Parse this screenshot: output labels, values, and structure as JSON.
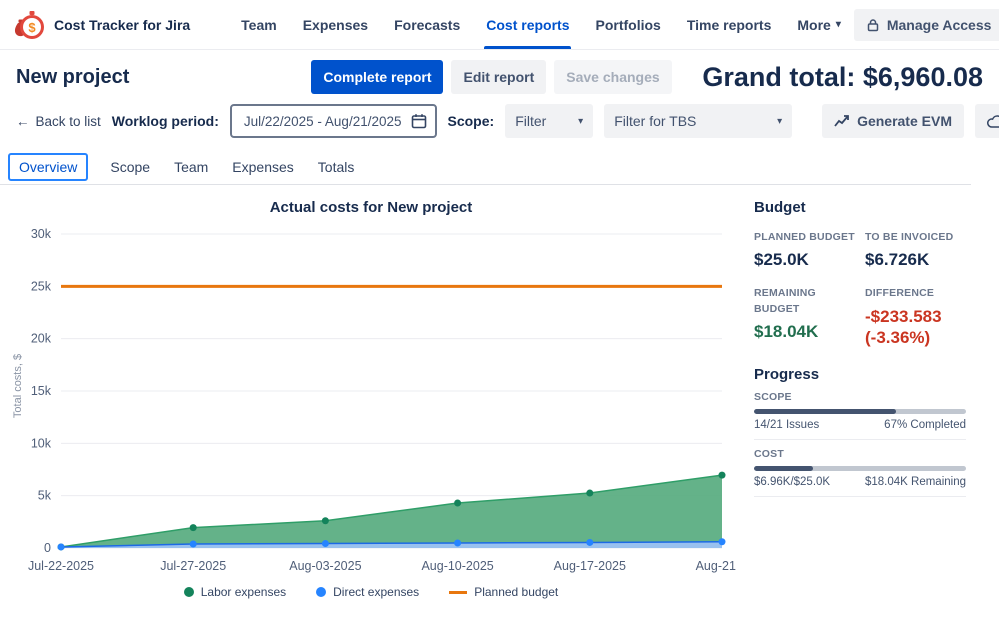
{
  "app": {
    "title": "Cost Tracker for Jira"
  },
  "icons": {
    "chevron_down": "▾",
    "kebab": "⋮",
    "back_arrow": "←"
  },
  "colors": {
    "accent_blue": "#0052cc",
    "labor_green": "#57ab7f",
    "direct_blue": "#2684ff",
    "budget_orange": "#e8770e",
    "positive_green": "#216e4e",
    "negative_red": "#ca3521"
  },
  "nav": {
    "items": [
      {
        "label": "Team",
        "active": false
      },
      {
        "label": "Expenses",
        "active": false
      },
      {
        "label": "Forecasts",
        "active": false
      },
      {
        "label": "Cost reports",
        "active": true
      },
      {
        "label": "Portfolios",
        "active": false
      },
      {
        "label": "Time reports",
        "active": false
      }
    ],
    "more_label": "More",
    "manage_access_label": "Manage Access"
  },
  "header": {
    "project_title": "New project",
    "complete_report_label": "Complete report",
    "edit_report_label": "Edit report",
    "save_changes_label": "Save changes",
    "grand_total": "Grand total: $6,960.08"
  },
  "toolbar": {
    "back_label": "Back to list",
    "worklog_label": "Worklog period:",
    "worklog_value": "Jul/22/2025 - Aug/21/2025",
    "scope_label": "Scope:",
    "scope_filter_value": "Filter",
    "tbs_filter_value": "Filter for TBS",
    "generate_evm_label": "Generate EVM"
  },
  "tabs": [
    "Overview",
    "Scope",
    "Team",
    "Expenses",
    "Totals"
  ],
  "chart_data": {
    "type": "area",
    "title": "Actual costs for New project",
    "ylabel": "Total costs, $",
    "x": [
      "Jul-22-2025",
      "Jul-27-2025",
      "Aug-03-2025",
      "Aug-10-2025",
      "Aug-17-2025",
      "Aug-21…"
    ],
    "ylim": [
      0,
      30000
    ],
    "yticks": [
      "0",
      "5k",
      "10k",
      "15k",
      "20k",
      "25k",
      "30k"
    ],
    "grid": true,
    "legend_position": "bottom",
    "series": [
      {
        "name": "Labor expenses",
        "kind": "area",
        "color": "#2f9e68",
        "fill": "#57ab7f",
        "dot": "#14835b",
        "values": [
          100,
          1950,
          2600,
          4300,
          5250,
          6960
        ]
      },
      {
        "name": "Direct expenses",
        "kind": "area",
        "color": "#1d6ae5",
        "fill": "#9dc2f7",
        "dot": "#2684ff",
        "values": [
          100,
          380,
          430,
          480,
          530,
          600
        ]
      },
      {
        "name": "Planned budget",
        "kind": "line",
        "color": "#e8770e",
        "values": [
          25000,
          25000,
          25000,
          25000,
          25000,
          25000
        ]
      }
    ]
  },
  "sidebar": {
    "budget_title": "Budget",
    "planned_label": "PLANNED BUDGET",
    "planned_value": "$25.0K",
    "invoiced_label": "TO BE INVOICED",
    "invoiced_value": "$6.726K",
    "remaining_label": "REMAINING BUDGET",
    "remaining_value": "$18.04K",
    "difference_label": "DIFFERENCE",
    "difference_value": "-$233.583 (-3.36%)",
    "progress_title": "Progress",
    "scope_label": "SCOPE",
    "scope_percent": 67,
    "scope_left": "14/21 Issues",
    "scope_right": "67% Completed",
    "cost_label": "COST",
    "cost_percent": 28,
    "cost_left": "$6.96K/$25.0K",
    "cost_right": "$18.04K Remaining"
  }
}
